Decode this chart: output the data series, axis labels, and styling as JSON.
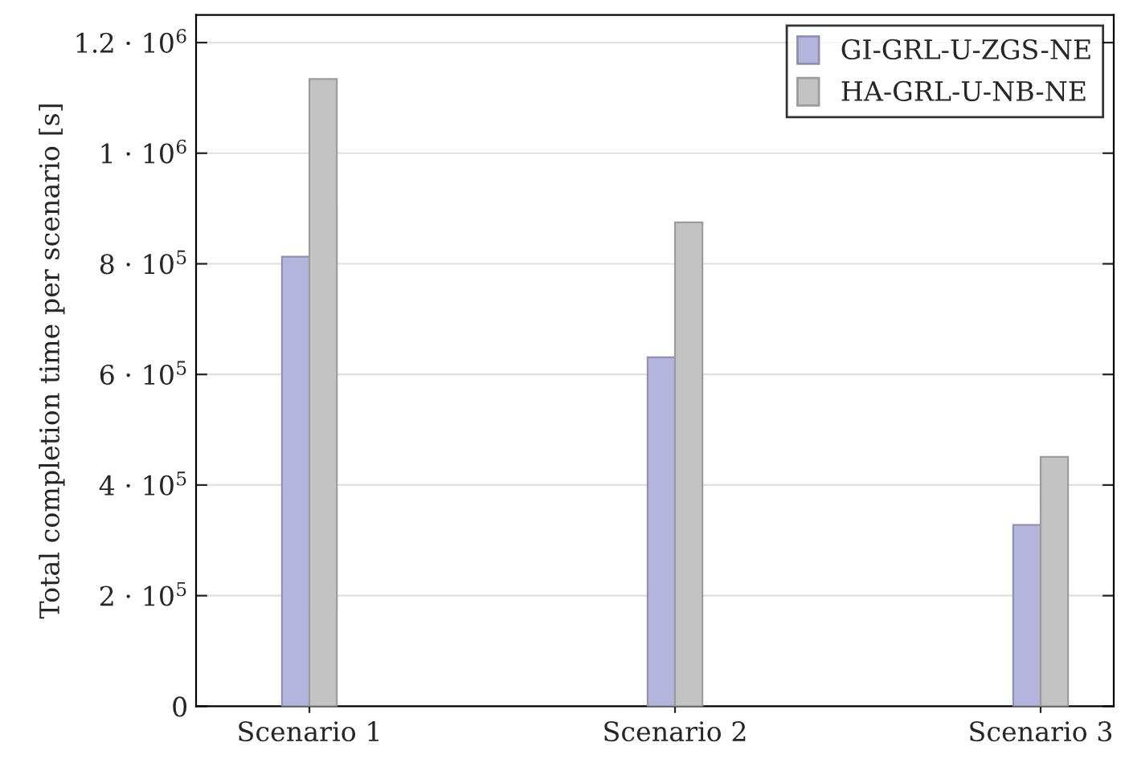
{
  "chart_data": {
    "type": "bar",
    "ylabel": "Total completion time per scenario [s]",
    "categories": [
      "Scenario 1",
      "Scenario 2",
      "Scenario 3"
    ],
    "series": [
      {
        "name": "GI-GRL-U-ZGS-NE",
        "color": "#b4b4dc",
        "values": [
          813000,
          631000,
          328000
        ]
      },
      {
        "name": "HA-GRL-U-NB-NE",
        "color": "#c3c3c3",
        "values": [
          1134000,
          875000,
          451000
        ]
      }
    ],
    "ylim": [
      0,
      1250000
    ],
    "yticks": [
      0,
      {
        "value": 200000,
        "label": "2 · 10$^{5}$"
      },
      {
        "value": 400000,
        "label": "4 · 10$^{5}$"
      },
      {
        "value": 600000,
        "label": "6 · 10$^{5}$"
      },
      {
        "value": 800000,
        "label": "8 · 10$^{5}$"
      },
      {
        "value": 1000000,
        "label": "1 · 10$^{6}$"
      },
      {
        "value": 1200000,
        "label": "1.2 · 10$^{6}$"
      }
    ],
    "grid": "y",
    "legend": "top right"
  }
}
